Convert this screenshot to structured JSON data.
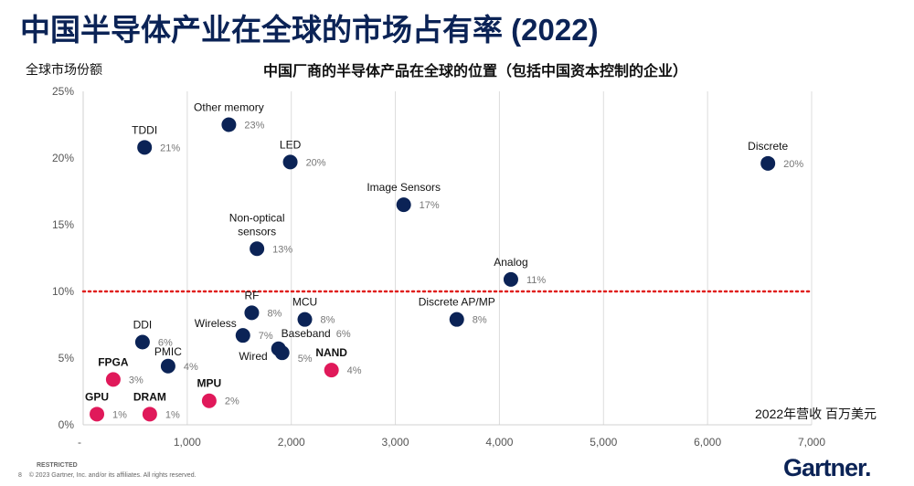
{
  "slide": {
    "title": "中国半导体产业在全球的市场占有率 (2022)",
    "restricted": "RESTRICTED",
    "page_number": "8",
    "copyright": "© 2023 Gartner, Inc. and/or its affiliates. All rights reserved.",
    "logo": "Gartner."
  },
  "chart_data": {
    "type": "scatter",
    "title": "中国厂商的半导体产品在全球的位置（包括中国资本控制的企业）",
    "ylabel": "全球市场份额",
    "xlabel": "2022年营收 百万美元",
    "xlim": [
      0,
      7000
    ],
    "ylim": [
      0,
      25
    ],
    "x_ticks": [
      "-",
      "1,000",
      "2,000",
      "3,000",
      "4,000",
      "5,000",
      "6,000",
      "7,000"
    ],
    "y_ticks": [
      "0%",
      "5%",
      "10%",
      "15%",
      "20%",
      "25%"
    ],
    "grid": "vertical",
    "reference_line": {
      "y": 10,
      "style": "dotted",
      "color": "#e0201e"
    },
    "colors": {
      "chinese_strong": "#0b2356",
      "chinese_weak": "#e0195a"
    },
    "points": [
      {
        "name": "Other memory",
        "x": 1400,
        "y": 22.5,
        "label": "23%",
        "group": "strong"
      },
      {
        "name": "TDDI",
        "x": 590,
        "y": 20.8,
        "label": "21%",
        "group": "strong"
      },
      {
        "name": "LED",
        "x": 1990,
        "y": 19.7,
        "label": "20%",
        "group": "strong"
      },
      {
        "name": "Discrete",
        "x": 6580,
        "y": 19.6,
        "label": "20%",
        "group": "strong"
      },
      {
        "name": "Image Sensors",
        "x": 3080,
        "y": 16.5,
        "label": "17%",
        "group": "strong"
      },
      {
        "name": "Non-optical sensors",
        "x": 1670,
        "y": 13.2,
        "label": "13%",
        "group": "strong"
      },
      {
        "name": "Analog",
        "x": 4110,
        "y": 10.9,
        "label": "11%",
        "group": "strong"
      },
      {
        "name": "RF",
        "x": 1620,
        "y": 8.4,
        "label": "8%",
        "group": "strong"
      },
      {
        "name": "MCU",
        "x": 2130,
        "y": 7.9,
        "label": "8%",
        "group": "strong"
      },
      {
        "name": "Discrete AP/MP",
        "x": 3590,
        "y": 7.9,
        "label": "8%",
        "group": "strong"
      },
      {
        "name": "Wireless",
        "x": 1535,
        "y": 6.7,
        "label": "7%",
        "group": "strong"
      },
      {
        "name": "DDI",
        "x": 570,
        "y": 6.2,
        "label": "6%",
        "group": "strong"
      },
      {
        "name": "Baseband",
        "x": 1877,
        "y": 5.7,
        "label": "6%",
        "group": "strong"
      },
      {
        "name": "Wired",
        "x": 1912,
        "y": 5.4,
        "label": "5%",
        "group": "strong"
      },
      {
        "name": "PMIC",
        "x": 816,
        "y": 4.4,
        "label": "4%",
        "group": "strong"
      },
      {
        "name": "NAND",
        "x": 2386,
        "y": 4.1,
        "label": "4%",
        "group": "weak"
      },
      {
        "name": "FPGA",
        "x": 289,
        "y": 3.4,
        "label": "3%",
        "group": "weak"
      },
      {
        "name": "MPU",
        "x": 1211,
        "y": 1.8,
        "label": "2%",
        "group": "weak"
      },
      {
        "name": "GPU",
        "x": 132,
        "y": 0.8,
        "label": "1%",
        "group": "weak"
      },
      {
        "name": "DRAM",
        "x": 640,
        "y": 0.8,
        "label": "1%",
        "group": "weak"
      }
    ]
  }
}
